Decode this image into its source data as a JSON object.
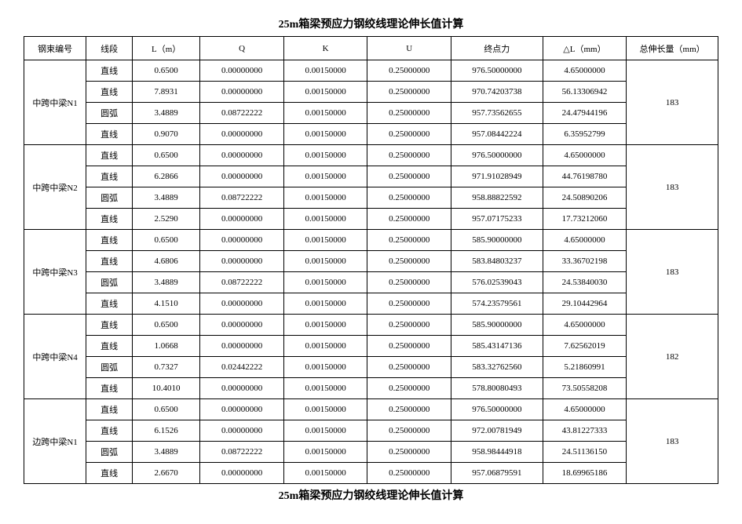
{
  "title_top": "25m箱梁预应力钢绞线理论伸长值计算",
  "title_bottom": "25m箱梁预应力钢绞线理论伸长值计算",
  "columns": {
    "c1": "钢束编号",
    "c2": "线段",
    "c3": "L（m）",
    "c4": "Q",
    "c5": "K",
    "c6": "U",
    "c7": "终点力",
    "c8": "△L（mm）",
    "c9": "总伸长量（mm）"
  },
  "groups": [
    {
      "id": "中跨中梁N1",
      "total": "183",
      "rows": [
        {
          "seg": "直线",
          "l": "0.6500",
          "q": "0.00000000",
          "k": "0.00150000",
          "u": "0.25000000",
          "end": "976.50000000",
          "dl": "4.65000000"
        },
        {
          "seg": "直线",
          "l": "7.8931",
          "q": "0.00000000",
          "k": "0.00150000",
          "u": "0.25000000",
          "end": "970.74203738",
          "dl": "56.13306942"
        },
        {
          "seg": "圆弧",
          "l": "3.4889",
          "q": "0.08722222",
          "k": "0.00150000",
          "u": "0.25000000",
          "end": "957.73562655",
          "dl": "24.47944196"
        },
        {
          "seg": "直线",
          "l": "0.9070",
          "q": "0.00000000",
          "k": "0.00150000",
          "u": "0.25000000",
          "end": "957.08442224",
          "dl": "6.35952799"
        }
      ]
    },
    {
      "id": "中跨中梁N2",
      "total": "183",
      "rows": [
        {
          "seg": "直线",
          "l": "0.6500",
          "q": "0.00000000",
          "k": "0.00150000",
          "u": "0.25000000",
          "end": "976.50000000",
          "dl": "4.65000000"
        },
        {
          "seg": "直线",
          "l": "6.2866",
          "q": "0.00000000",
          "k": "0.00150000",
          "u": "0.25000000",
          "end": "971.91028949",
          "dl": "44.76198780"
        },
        {
          "seg": "圆弧",
          "l": "3.4889",
          "q": "0.08722222",
          "k": "0.00150000",
          "u": "0.25000000",
          "end": "958.88822592",
          "dl": "24.50890206"
        },
        {
          "seg": "直线",
          "l": "2.5290",
          "q": "0.00000000",
          "k": "0.00150000",
          "u": "0.25000000",
          "end": "957.07175233",
          "dl": "17.73212060"
        }
      ]
    },
    {
      "id": "中跨中梁N3",
      "total": "183",
      "rows": [
        {
          "seg": "直线",
          "l": "0.6500",
          "q": "0.00000000",
          "k": "0.00150000",
          "u": "0.25000000",
          "end": "585.90000000",
          "dl": "4.65000000"
        },
        {
          "seg": "直线",
          "l": "4.6806",
          "q": "0.00000000",
          "k": "0.00150000",
          "u": "0.25000000",
          "end": "583.84803237",
          "dl": "33.36702198"
        },
        {
          "seg": "圆弧",
          "l": "3.4889",
          "q": "0.08722222",
          "k": "0.00150000",
          "u": "0.25000000",
          "end": "576.02539043",
          "dl": "24.53840030"
        },
        {
          "seg": "直线",
          "l": "4.1510",
          "q": "0.00000000",
          "k": "0.00150000",
          "u": "0.25000000",
          "end": "574.23579561",
          "dl": "29.10442964"
        }
      ]
    },
    {
      "id": "中跨中梁N4",
      "total": "182",
      "rows": [
        {
          "seg": "直线",
          "l": "0.6500",
          "q": "0.00000000",
          "k": "0.00150000",
          "u": "0.25000000",
          "end": "585.90000000",
          "dl": "4.65000000"
        },
        {
          "seg": "直线",
          "l": "1.0668",
          "q": "0.00000000",
          "k": "0.00150000",
          "u": "0.25000000",
          "end": "585.43147136",
          "dl": "7.62562019"
        },
        {
          "seg": "圆弧",
          "l": "0.7327",
          "q": "0.02442222",
          "k": "0.00150000",
          "u": "0.25000000",
          "end": "583.32762560",
          "dl": "5.21860991"
        },
        {
          "seg": "直线",
          "l": "10.4010",
          "q": "0.00000000",
          "k": "0.00150000",
          "u": "0.25000000",
          "end": "578.80080493",
          "dl": "73.50558208"
        }
      ]
    },
    {
      "id": "边跨中梁N1",
      "total": "183",
      "rows": [
        {
          "seg": "直线",
          "l": "0.6500",
          "q": "0.00000000",
          "k": "0.00150000",
          "u": "0.25000000",
          "end": "976.50000000",
          "dl": "4.65000000"
        },
        {
          "seg": "直线",
          "l": "6.1526",
          "q": "0.00000000",
          "k": "0.00150000",
          "u": "0.25000000",
          "end": "972.00781949",
          "dl": "43.81227333"
        },
        {
          "seg": "圆弧",
          "l": "3.4889",
          "q": "0.08722222",
          "k": "0.00150000",
          "u": "0.25000000",
          "end": "958.98444918",
          "dl": "24.51136150"
        },
        {
          "seg": "直线",
          "l": "2.6670",
          "q": "0.00000000",
          "k": "0.00150000",
          "u": "0.25000000",
          "end": "957.06879591",
          "dl": "18.69965186"
        }
      ]
    }
  ]
}
